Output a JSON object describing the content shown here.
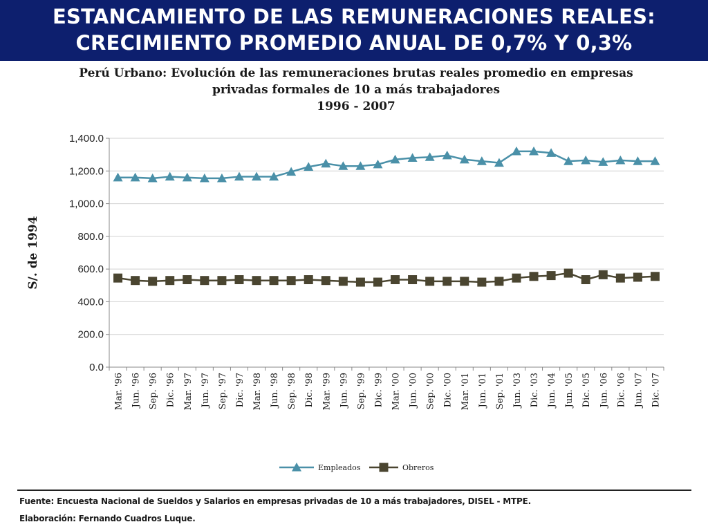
{
  "header": {
    "line1": "ESTANCAMIENTO DE LAS REMUNERACIONES REALES:",
    "line2": "CRECIMIENTO PROMEDIO ANUAL DE 0,7% Y 0,3%"
  },
  "footer": {
    "source": "Fuente: Encuesta Nacional de Sueldos y Salarios en empresas privadas de 10 a más trabajadores, DISEL - MTPE.",
    "credit": "Elaboración: Fernando Cuadros Luque."
  },
  "colors": {
    "header_bg": "#0d1f6e",
    "empleados": "#4a90a8",
    "obreros": "#4a4530",
    "grid": "#d0d0d0"
  },
  "chart_data": {
    "type": "line",
    "title": [
      "Perú Urbano: Evolución de las remuneraciones brutas reales promedio en empresas",
      "privadas formales de 10 a más trabajadores",
      "1996 - 2007"
    ],
    "xlabel": "",
    "ylabel": "S/. de 1994",
    "ylim": [
      0,
      1400
    ],
    "yticks": [
      0,
      200,
      400,
      600,
      800,
      1000,
      1200,
      1400
    ],
    "ytick_labels": [
      "0.0",
      "200.0",
      "400.0",
      "600.0",
      "800.0",
      "1,000.0",
      "1,200.0",
      "1,400.0"
    ],
    "grid": true,
    "legend_position": "bottom",
    "categories": [
      "Mar. '96",
      "Jun. '96",
      "Sep. '96",
      "Dic. '96",
      "Mar. '97",
      "Jun. '97",
      "Sep. '97",
      "Dic. '97",
      "Mar. '98",
      "Jun. '98",
      "Sep. '98",
      "Dic. '98",
      "Mar. '99",
      "Jun. '99",
      "Sep. '99",
      "Dic. '99",
      "Mar. '00",
      "Jun. '00",
      "Sep. '00",
      "Dic. '00",
      "Mar. '01",
      "Jun. '01",
      "Sep. '01",
      "Jun. '03",
      "Dic. '03",
      "Jun. '04",
      "Jun. '05",
      "Dic. '05",
      "Jun. '06",
      "Dic. '06",
      "Jun. '07",
      "Dic. '07"
    ],
    "series": [
      {
        "name": "Empleados",
        "marker": "triangle",
        "values": [
          1160,
          1160,
          1155,
          1165,
          1160,
          1155,
          1155,
          1165,
          1165,
          1165,
          1195,
          1225,
          1245,
          1230,
          1230,
          1240,
          1270,
          1280,
          1285,
          1295,
          1270,
          1260,
          1250,
          1320,
          1320,
          1310,
          1260,
          1265,
          1255,
          1265,
          1260,
          1260
        ]
      },
      {
        "name": "Obreros",
        "marker": "square",
        "values": [
          545,
          530,
          525,
          530,
          535,
          530,
          530,
          535,
          530,
          530,
          530,
          535,
          530,
          525,
          520,
          520,
          535,
          535,
          525,
          525,
          525,
          520,
          525,
          545,
          555,
          560,
          575,
          535,
          565,
          545,
          550,
          555
        ]
      }
    ]
  }
}
